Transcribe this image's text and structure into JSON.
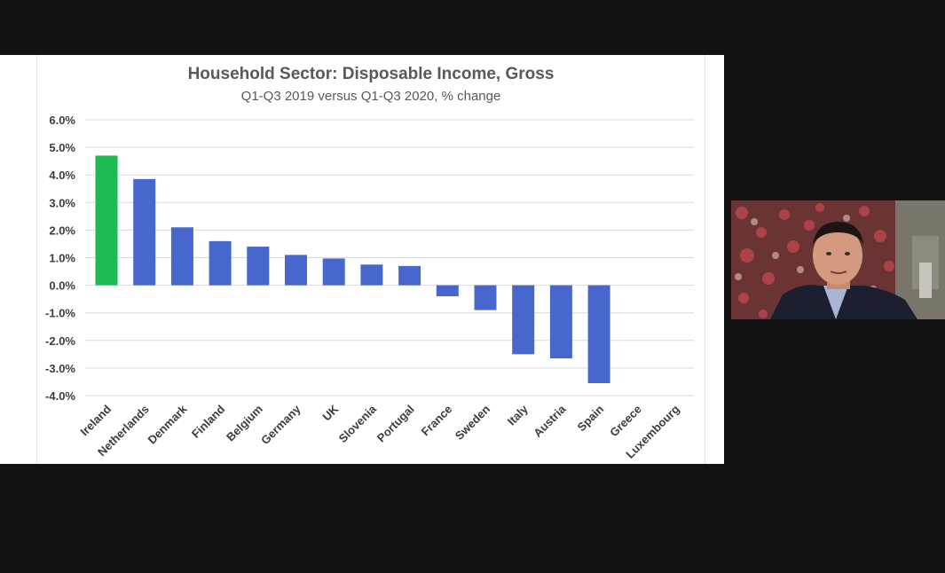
{
  "chart_data": {
    "type": "bar",
    "title": "Household Sector: Disposable Income, Gross",
    "subtitle": "Q1-Q3 2019 versus Q1-Q3 2020, % change",
    "categories": [
      "Ireland",
      "Netherlands",
      "Denmark",
      "Finland",
      "Belgium",
      "Germany",
      "UK",
      "Slovenia",
      "Portugal",
      "France",
      "Sweden",
      "Italy",
      "Austria",
      "Spain",
      "Greece",
      "Luxembourg"
    ],
    "values": [
      4.7,
      3.85,
      2.1,
      1.6,
      1.4,
      1.1,
      0.97,
      0.75,
      0.7,
      -0.4,
      -0.9,
      -2.5,
      -2.65,
      -3.55,
      null,
      null
    ],
    "ylim": [
      -4.0,
      6.0
    ],
    "yticks": [
      "6.0%",
      "5.0%",
      "4.0%",
      "3.0%",
      "2.0%",
      "1.0%",
      "0.0%",
      "-1.0%",
      "-2.0%",
      "-3.0%",
      "-4.0%"
    ],
    "ytick_values": [
      6,
      5,
      4,
      3,
      2,
      1,
      0,
      -1,
      -2,
      -3,
      -4
    ],
    "grid": true,
    "highlight_category": "Ireland",
    "colors": {
      "highlight": "#1db954",
      "default": "#4767cc",
      "grid": "#d9d9d9",
      "text": "#595959"
    }
  },
  "video": {
    "icon": "participant-video-icon"
  }
}
